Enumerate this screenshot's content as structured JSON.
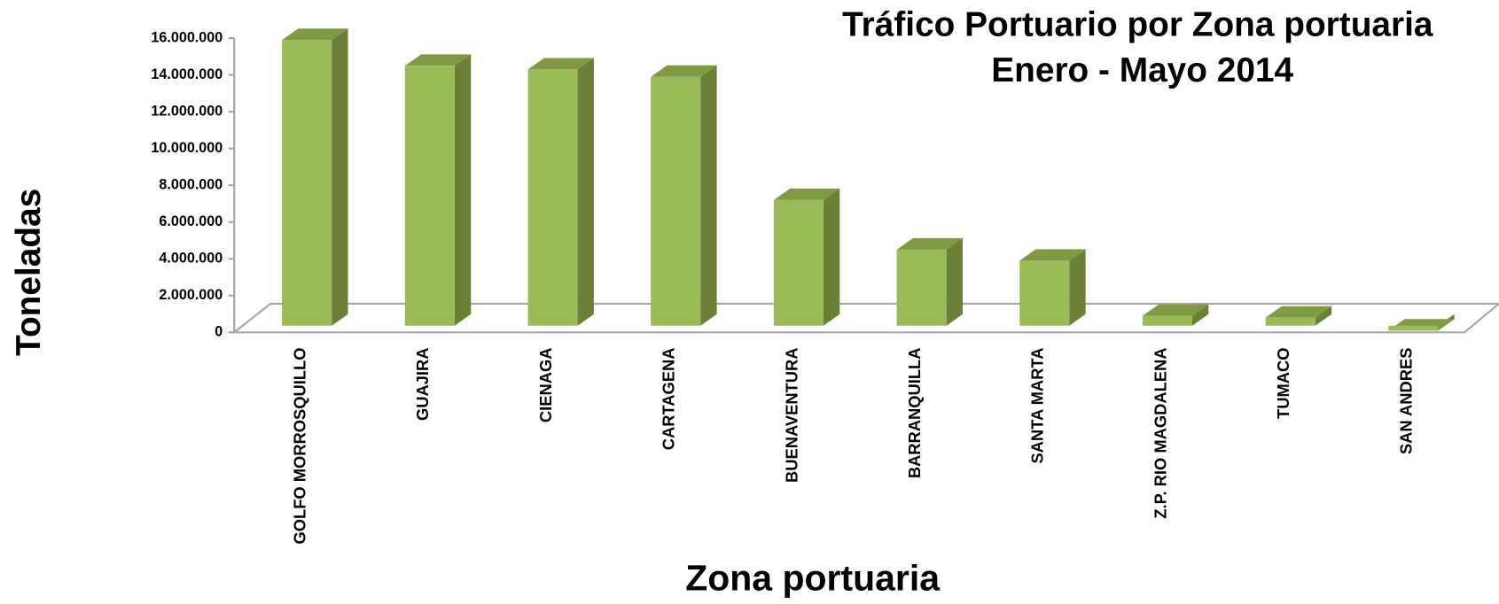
{
  "chart_data": {
    "type": "bar3d",
    "title": "Tráfico Portuario por Zona portuaria",
    "subtitle": "Enero - Mayo 2014",
    "y_label": "Toneladas",
    "x_label": "Zona portuaria",
    "categories": [
      "GOLFO MORROSQUILLO",
      "GUAJIRA",
      "CIENAGA",
      "CARTAGENA",
      "BUENAVENTURA",
      "BARRANQUILLA",
      "SANTA MARTA",
      "Z.P. RIO MAGDALENA",
      "TUMACO",
      "SAN ANDRES"
    ],
    "values": [
      15900000,
      14500000,
      14300000,
      13900000,
      7200000,
      4500000,
      3900000,
      900000,
      800000,
      100000
    ],
    "color": "#9bbb59",
    "ylim": [
      0,
      16000000
    ],
    "yticks": [
      0,
      {
        "value": 2000000,
        "label": "2.000.000"
      },
      {
        "value": 4000000,
        "label": "4.000.000"
      },
      {
        "value": 6000000,
        "label": "6.000.000"
      },
      {
        "value": 8000000,
        "label": "8.000.000"
      },
      {
        "value": 10000000,
        "label": "10.000.000"
      },
      {
        "value": 12000000,
        "label": "12.000.000"
      },
      {
        "value": 14000000,
        "label": "14.000.000"
      },
      {
        "value": 16000000,
        "label": "16.000.000"
      }
    ]
  }
}
